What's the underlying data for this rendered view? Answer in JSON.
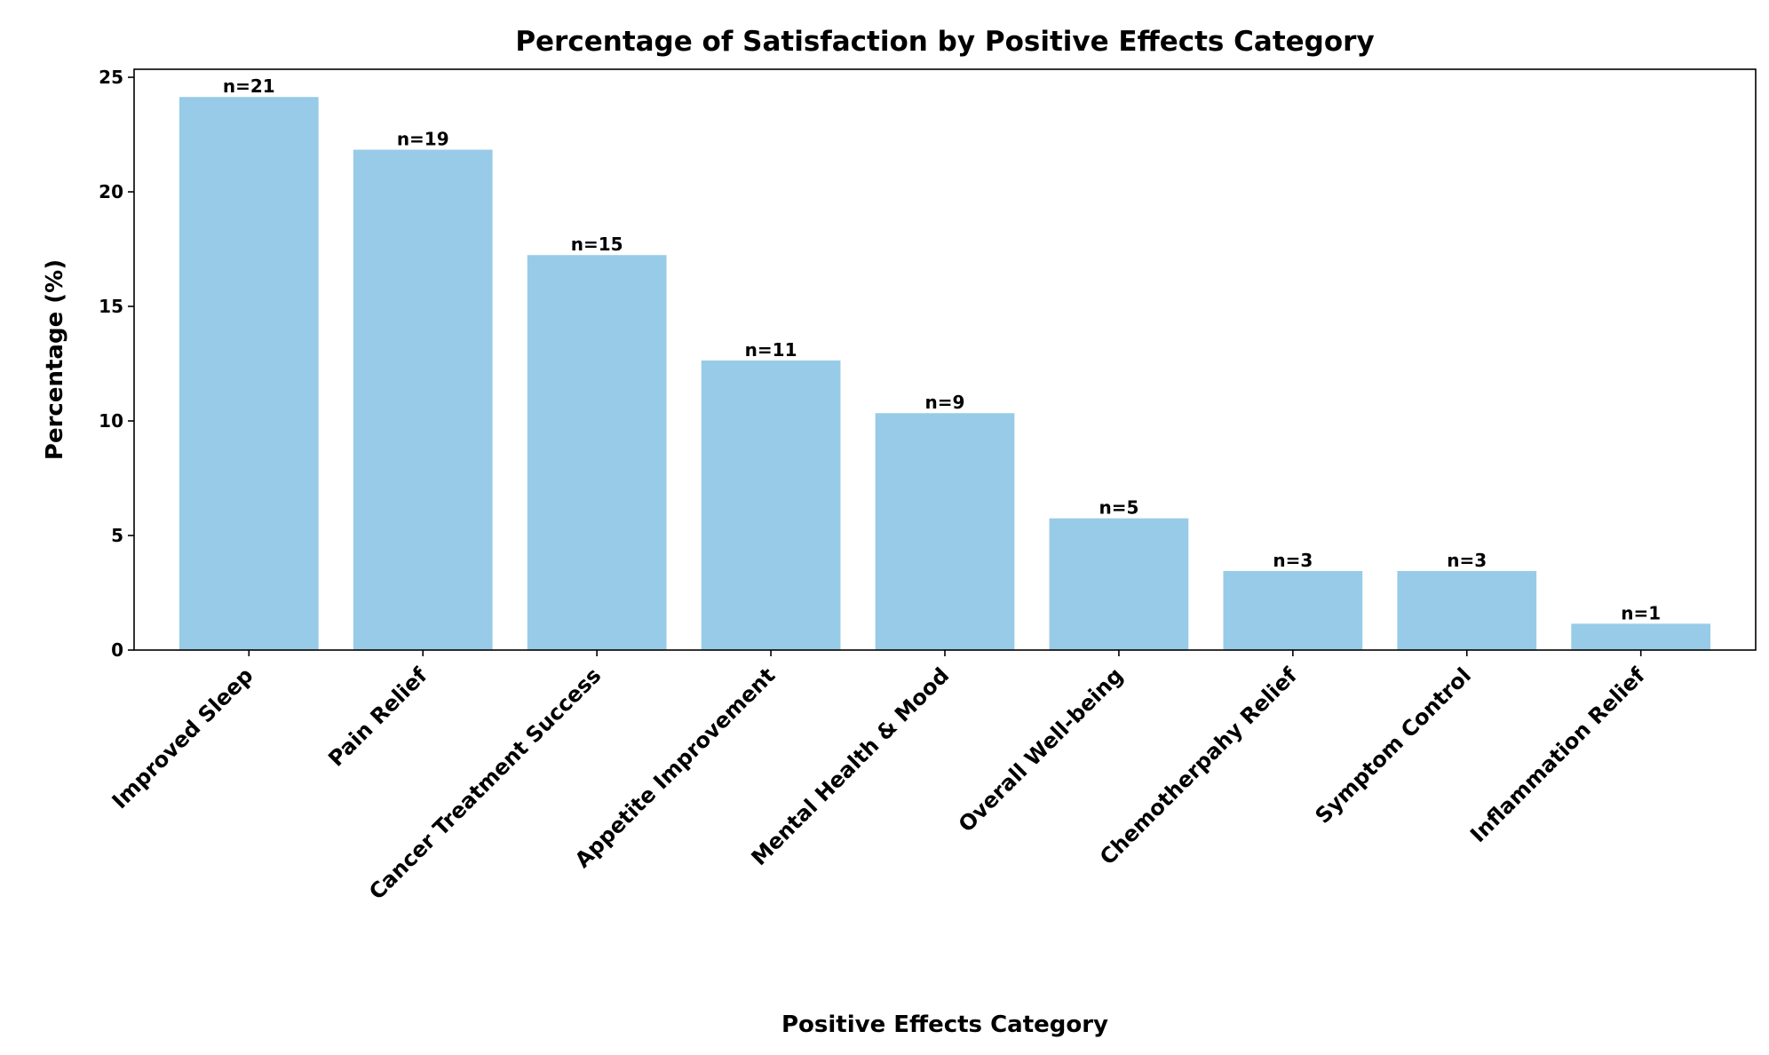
{
  "chart_data": {
    "type": "bar",
    "title": "Percentage of Satisfaction by Positive Effects Category",
    "xlabel": "Positive Effects Category",
    "ylabel": "Percentage (%)",
    "categories": [
      "Improved Sleep",
      "Pain Relief",
      "Cancer Treatment Success",
      "Appetite Improvement",
      "Mental Health & Mood",
      "Overall Well-being",
      "Chemotherpahy Relief",
      "Symptom Control",
      "Inflammation Relief"
    ],
    "values": [
      24.14,
      21.84,
      17.24,
      12.64,
      10.34,
      5.75,
      3.45,
      3.45,
      1.15
    ],
    "data_labels": [
      "n=21",
      "n=19",
      "n=15",
      "n=11",
      "n=9",
      "n=5",
      "n=3",
      "n=3",
      "n=1"
    ],
    "ylim": [
      0,
      25.35
    ],
    "yticks": [
      0,
      5,
      10,
      15,
      20,
      25
    ],
    "grid": false,
    "bar_color": "#98cbe7"
  }
}
